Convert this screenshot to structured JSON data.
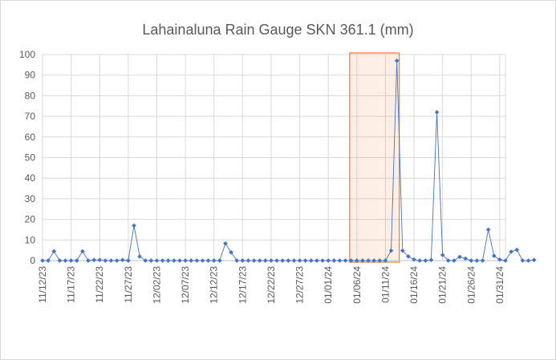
{
  "chart_data": {
    "type": "line",
    "title": "Lahainaluna Rain Gauge SKN 361.1 (mm)",
    "ylim": [
      0,
      100
    ],
    "y_ticks": [
      0,
      10,
      20,
      30,
      40,
      50,
      60,
      70,
      80,
      90,
      100
    ],
    "grid": true,
    "x_tick_labels": [
      "11/12/23",
      "11/17/23",
      "11/22/23",
      "11/27/23",
      "12/02/23",
      "12/07/23",
      "12/12/23",
      "12/17/23",
      "12/22/23",
      "12/27/23",
      "01/01/24",
      "01/06/24",
      "01/11/24",
      "01/16/24",
      "01/21/24",
      "01/26/24",
      "01/31/24"
    ],
    "x_start": "11/12/23",
    "x_end": "02/01/24",
    "series": [
      {
        "color": "#4472c4",
        "values": [
          0,
          0,
          4.5,
          0,
          0,
          0,
          0,
          4.5,
          0,
          0.3,
          0.3,
          0,
          0,
          0,
          0.3,
          0,
          17,
          2,
          0,
          0,
          0,
          0,
          0,
          0,
          0,
          0,
          0,
          0,
          0,
          0,
          0,
          0,
          8.3,
          4,
          0,
          0,
          0,
          0,
          0,
          0,
          0,
          0,
          0,
          0,
          0,
          0,
          0,
          0,
          0,
          0,
          0,
          0,
          0,
          0,
          0,
          0,
          0,
          0,
          0,
          0,
          0,
          4.8,
          97,
          4.8,
          2,
          0.5,
          0,
          0,
          0.3,
          72,
          2.7,
          0,
          0,
          1.8,
          1,
          0,
          0,
          0,
          15,
          2.3,
          0.5,
          0,
          4.3,
          5.2,
          0,
          0,
          0.3
        ]
      }
    ],
    "highlight": {
      "from": "01/06/24",
      "to": "01/13/24",
      "color": "#ed7d31"
    }
  }
}
